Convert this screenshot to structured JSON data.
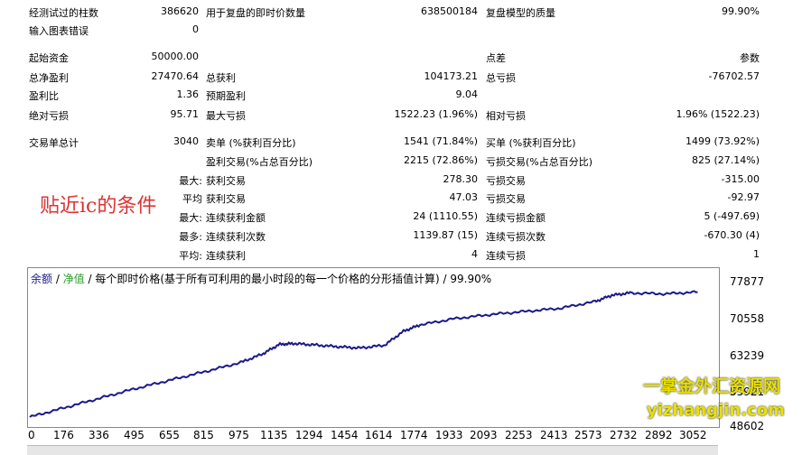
{
  "stats": {
    "row1": {
      "l1": "经测试过的柱数",
      "v1": "386620",
      "l2": "用于复盘的即时价数量",
      "v2": "638500184",
      "l3": "复盘模型的质量",
      "v3": "99.90%"
    },
    "row2": {
      "l1": "输入图表错误",
      "v1": "0"
    },
    "row3": {
      "l1": "起始资金",
      "v1": "50000.00",
      "l3": "点差",
      "v3": "参数"
    },
    "row4": {
      "l1": "总净盈利",
      "v1": "27470.64",
      "l2": "总获利",
      "v2": "104173.21",
      "l3": "总亏损",
      "v3": "-76702.57"
    },
    "row5": {
      "l1": "盈利比",
      "v1": "1.36",
      "l2": "预期盈利",
      "v2": "9.04"
    },
    "row6": {
      "l1": "绝对亏损",
      "v1": "95.71",
      "l2": "最大亏损",
      "v2": "1522.23 (1.96%)",
      "l3": "相对亏损",
      "v3": "1.96% (1522.23)"
    },
    "row7": {
      "l1": "交易单总计",
      "v1": "3040",
      "l2": "卖单 (%获利百分比)",
      "v2": "1541 (71.84%)",
      "l3": "买单 (%获利百分比)",
      "v3": "1499 (73.92%)"
    },
    "row8": {
      "l2": "盈利交易(%占总百分比)",
      "v2": "2215 (72.86%)",
      "l3": "亏损交易(%占总百分比)",
      "v3": "825 (27.14%)"
    },
    "row9": {
      "pre": "最大:",
      "l2": "获利交易",
      "v2": "278.30",
      "l3": "亏损交易",
      "v3": "-315.00"
    },
    "row10": {
      "pre": "平均",
      "l2": "获利交易",
      "v2": "47.03",
      "l3": "亏损交易",
      "v3": "-92.97"
    },
    "row11": {
      "pre": "最大:",
      "l2": "连续获利金额",
      "v2": "24 (1110.55)",
      "l3": "连续亏损金额",
      "v3": "5 (-497.69)"
    },
    "row12": {
      "pre": "最多:",
      "l2": "连续获利次数",
      "v2": "1139.87 (15)",
      "l3": "连续亏损次数",
      "v3": "-670.30 (4)"
    },
    "row13": {
      "pre": "平均:",
      "l2": "连续获利",
      "v2": "4",
      "l3": "连续亏损",
      "v3": "1"
    }
  },
  "overlay_text": "贴近ic的条件",
  "chart_legend": {
    "balance": "余额",
    "sep1": " / ",
    "equity": "净值",
    "desc": " / 每个即时价格(基于所有可利用的最小时段的每一个价格的分形插值计算) / 99.90%"
  },
  "branding": {
    "line1": "一掌金外汇资源网",
    "line2": "yizhangjin.com"
  },
  "chart_data": {
    "type": "line",
    "title": "",
    "ylim": [
      48602,
      79000
    ],
    "y_ticks": [
      "77877",
      "70558",
      "63239",
      "55921",
      "48602"
    ],
    "x_ticks": [
      "0",
      "176",
      "336",
      "495",
      "655",
      "815",
      "975",
      "1135",
      "1294",
      "1454",
      "1614",
      "1774",
      "1933",
      "2093",
      "2253",
      "2413",
      "2573",
      "2732",
      "2892",
      "3052"
    ],
    "series": [
      {
        "name": "余额",
        "color": "#1a1a8c",
        "x": [
          0,
          160,
          320,
          480,
          640,
          800,
          960,
          1060,
          1135,
          1200,
          1294,
          1400,
          1500,
          1614,
          1700,
          1774,
          1933,
          2093,
          2253,
          2413,
          2573,
          2650,
          2732,
          2892,
          3040
        ],
        "y": [
          50000,
          52100,
          54200,
          56300,
          58200,
          60100,
          62100,
          64000,
          66100,
          66300,
          66000,
          65600,
          65300,
          65900,
          69000,
          70400,
          71800,
          72700,
          73400,
          74100,
          75600,
          77000,
          77500,
          77300,
          77700
        ]
      }
    ]
  }
}
